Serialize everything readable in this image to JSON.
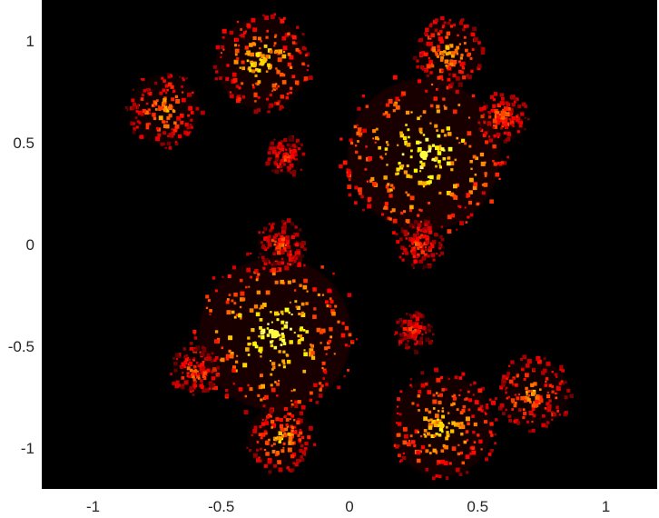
{
  "chart_data": {
    "type": "heatmap",
    "title": "",
    "xlabel": "",
    "ylabel": "",
    "xlim": [
      -1.2,
      1.2
    ],
    "ylim": [
      -1.2,
      1.2
    ],
    "x_ticks": [
      -1,
      -0.5,
      0,
      0.5,
      1
    ],
    "x_tick_labels": [
      "-1",
      "-0.5",
      "0",
      "0.5",
      "1"
    ],
    "y_ticks": [
      1,
      0.5,
      0,
      -0.5,
      -1
    ],
    "y_tick_labels": [
      "1",
      "0.5",
      "0",
      "-0.5",
      "-1"
    ],
    "grid": false,
    "colormap": "hot",
    "background_color": "#000000",
    "clusters": [
      {
        "name": "spiral-upper-right",
        "x": 0.29,
        "y": 0.44,
        "r": 0.33,
        "intensity": 1.0
      },
      {
        "name": "spiral-lower-left",
        "x": -0.29,
        "y": -0.44,
        "r": 0.33,
        "intensity": 1.0
      },
      {
        "name": "spiral-upper-left",
        "x": -0.34,
        "y": 0.89,
        "r": 0.2,
        "intensity": 0.85
      },
      {
        "name": "spiral-lower-right",
        "x": 0.36,
        "y": -0.89,
        "r": 0.22,
        "intensity": 0.85
      },
      {
        "name": "spiral-top-mid",
        "x": 0.39,
        "y": 0.94,
        "r": 0.14,
        "intensity": 0.75
      },
      {
        "name": "spiral-bottom-mid",
        "x": -0.27,
        "y": -0.95,
        "r": 0.14,
        "intensity": 0.75
      },
      {
        "name": "spiral-left",
        "x": -0.72,
        "y": 0.66,
        "r": 0.15,
        "intensity": 0.7
      },
      {
        "name": "spiral-right",
        "x": 0.72,
        "y": -0.73,
        "r": 0.15,
        "intensity": 0.7
      },
      {
        "name": "spiral-far-left",
        "x": -0.6,
        "y": -0.62,
        "r": 0.1,
        "intensity": 0.6
      },
      {
        "name": "spiral-far-right",
        "x": 0.6,
        "y": 0.62,
        "r": 0.1,
        "intensity": 0.6
      },
      {
        "name": "spiral-center-up",
        "x": -0.27,
        "y": 0.0,
        "r": 0.1,
        "intensity": 0.55
      },
      {
        "name": "spiral-center-down",
        "x": 0.27,
        "y": 0.0,
        "r": 0.1,
        "intensity": 0.55
      },
      {
        "name": "spiral-mid-left",
        "x": -0.25,
        "y": 0.43,
        "r": 0.08,
        "intensity": 0.5
      },
      {
        "name": "spiral-mid-right",
        "x": 0.25,
        "y": -0.43,
        "r": 0.08,
        "intensity": 0.5
      }
    ]
  }
}
